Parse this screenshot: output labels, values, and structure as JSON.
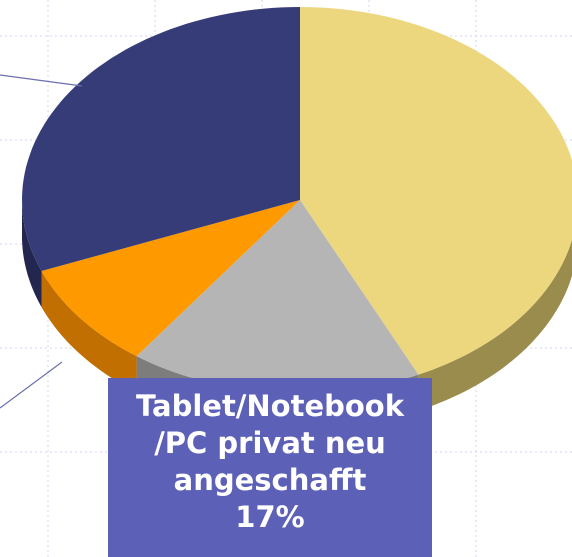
{
  "chart_data": {
    "type": "pie",
    "categories": [
      null,
      "Tablet/Notebook /PC privat neu angeschafft",
      null,
      null
    ],
    "values": [
      43,
      17,
      9,
      31
    ],
    "value_labels": [
      null,
      "17%",
      null,
      null
    ],
    "colors": [
      "#ecd77f",
      "#b5b5b5",
      "#ff9900",
      "#363c78"
    ],
    "side_colors": [
      "#9a8c4c",
      "#7d7d7d",
      "#c06f00",
      "#23274f"
    ]
  }
}
